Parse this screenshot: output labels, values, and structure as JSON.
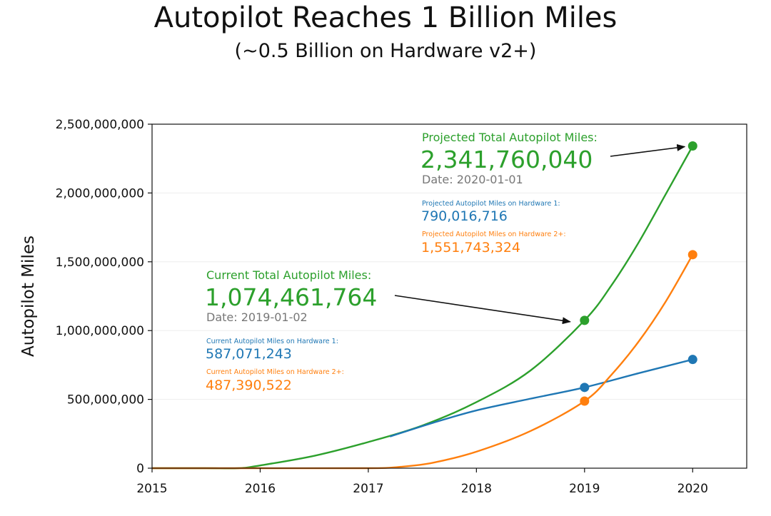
{
  "chart_data": {
    "type": "line",
    "title": "Autopilot Reaches 1 Billion Miles",
    "subtitle": "(~0.5 Billion on Hardware v2+)",
    "xlabel": "",
    "ylabel": "Autopilot Miles",
    "xlim": [
      2015,
      2020.5
    ],
    "ylim": [
      0,
      2500000000
    ],
    "xticks": [
      2015,
      2016,
      2017,
      2018,
      2019,
      2020
    ],
    "yticks": [
      0,
      500000000,
      1000000000,
      1500000000,
      2000000000,
      2500000000
    ],
    "ytick_labels": [
      "0",
      "500,000,000",
      "1,000,000,000",
      "1,500,000,000",
      "2,000,000,000",
      "2,500,000,000"
    ],
    "grid": true,
    "series": [
      {
        "color": "#2ca02c",
        "x": [
          2015,
          2015.5,
          2015.8,
          2016,
          2016.5,
          2017,
          2017.5,
          2018,
          2018.5,
          2019,
          2019.25,
          2019.5,
          2019.75,
          2020
        ],
        "values": [
          0,
          0,
          0,
          20000000,
          90000000,
          190000000,
          310000000,
          480000000,
          710000000,
          1074461764,
          1330000000,
          1640000000,
          1990000000,
          2341760040
        ],
        "markers": [
          {
            "x": 2019,
            "y": 1074461764
          },
          {
            "x": 2020,
            "y": 2341760040
          }
        ]
      },
      {
        "color": "#1f77b4",
        "x": [
          2017.2,
          2017.6,
          2018,
          2018.5,
          2019,
          2019.5,
          2020
        ],
        "values": [
          230000000,
          330000000,
          420000000,
          505000000,
          587071243,
          690000000,
          790016716
        ],
        "markers": [
          {
            "x": 2019,
            "y": 587071243
          },
          {
            "x": 2020,
            "y": 790016716
          }
        ]
      },
      {
        "color": "#ff7f0e",
        "x": [
          2015,
          2016,
          2017,
          2017.3,
          2017.6,
          2018,
          2018.5,
          2019,
          2019.25,
          2019.5,
          2019.75,
          2020
        ],
        "values": [
          0,
          0,
          0,
          10000000,
          40000000,
          120000000,
          270000000,
          487390522,
          680000000,
          920000000,
          1210000000,
          1551743324
        ],
        "markers": [
          {
            "x": 2019,
            "y": 487390522
          },
          {
            "x": 2020,
            "y": 1551743324
          }
        ]
      }
    ],
    "annotations": {
      "projected": {
        "heading": "Projected Total Autopilot Miles:",
        "value": "2,341,760,040",
        "date": "Date: 2020-01-01",
        "hw1_label": "Projected Autopilot Miles on Hardware 1:",
        "hw1_value": "790,016,716",
        "hw2_label": "Projected Autopilot Miles on Hardware 2+:",
        "hw2_value": "1,551,743,324",
        "arrow_to": {
          "x": 2020,
          "y": 2341760040
        }
      },
      "current": {
        "heading": "Current Total Autopilot Miles:",
        "value": "1,074,461,764",
        "date": "Date: 2019-01-02",
        "hw1_label": "Current Autopilot Miles on Hardware 1:",
        "hw1_value": "587,071,243",
        "hw2_label": "Current Autopilot Miles on Hardware 2+:",
        "hw2_value": "487,390,522",
        "arrow_to": {
          "x": 2019,
          "y": 1074461764
        }
      }
    }
  }
}
